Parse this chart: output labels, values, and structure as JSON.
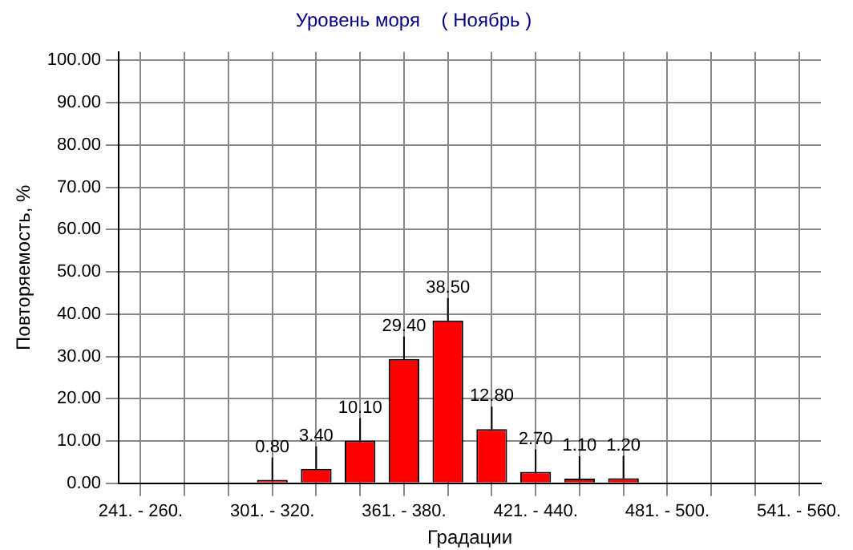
{
  "chart_data": {
    "type": "bar",
    "title": "Уровень моря    ( Ноябрь )",
    "xlabel": "Градации",
    "ylabel": "Повторяемость, %",
    "categories": [
      "241. - 260.",
      null,
      null,
      "301. - 320.",
      null,
      null,
      "361. - 380.",
      null,
      null,
      "421. - 440.",
      null,
      null,
      "481. - 500.",
      null,
      null,
      "541. - 560."
    ],
    "values": [
      null,
      null,
      null,
      0.8,
      3.4,
      10.1,
      29.4,
      38.5,
      12.8,
      2.7,
      1.1,
      1.2,
      null,
      null,
      null,
      null
    ],
    "value_labels": [
      null,
      null,
      null,
      "0.80",
      "3.40",
      "10.10",
      "29.40",
      "38.50",
      "12.80",
      "2.70",
      "1.10",
      "1.20",
      null,
      null,
      null,
      null
    ],
    "color": "#ff0000",
    "ylim": [
      0,
      102
    ],
    "yticks": [
      {
        "value": 0,
        "label": "0.00"
      },
      {
        "value": 10,
        "label": "10.00"
      },
      {
        "value": 20,
        "label": "20.00"
      },
      {
        "value": 30,
        "label": "30.00"
      },
      {
        "value": 40,
        "label": "40.00"
      },
      {
        "value": 50,
        "label": "50.00"
      },
      {
        "value": 60,
        "label": "60.00"
      },
      {
        "value": 70,
        "label": "70.00"
      },
      {
        "value": 80,
        "label": "80.00"
      },
      {
        "value": 90,
        "label": "90.00"
      },
      {
        "value": 100,
        "label": "100.00"
      }
    ],
    "grid": true,
    "legend": false
  }
}
